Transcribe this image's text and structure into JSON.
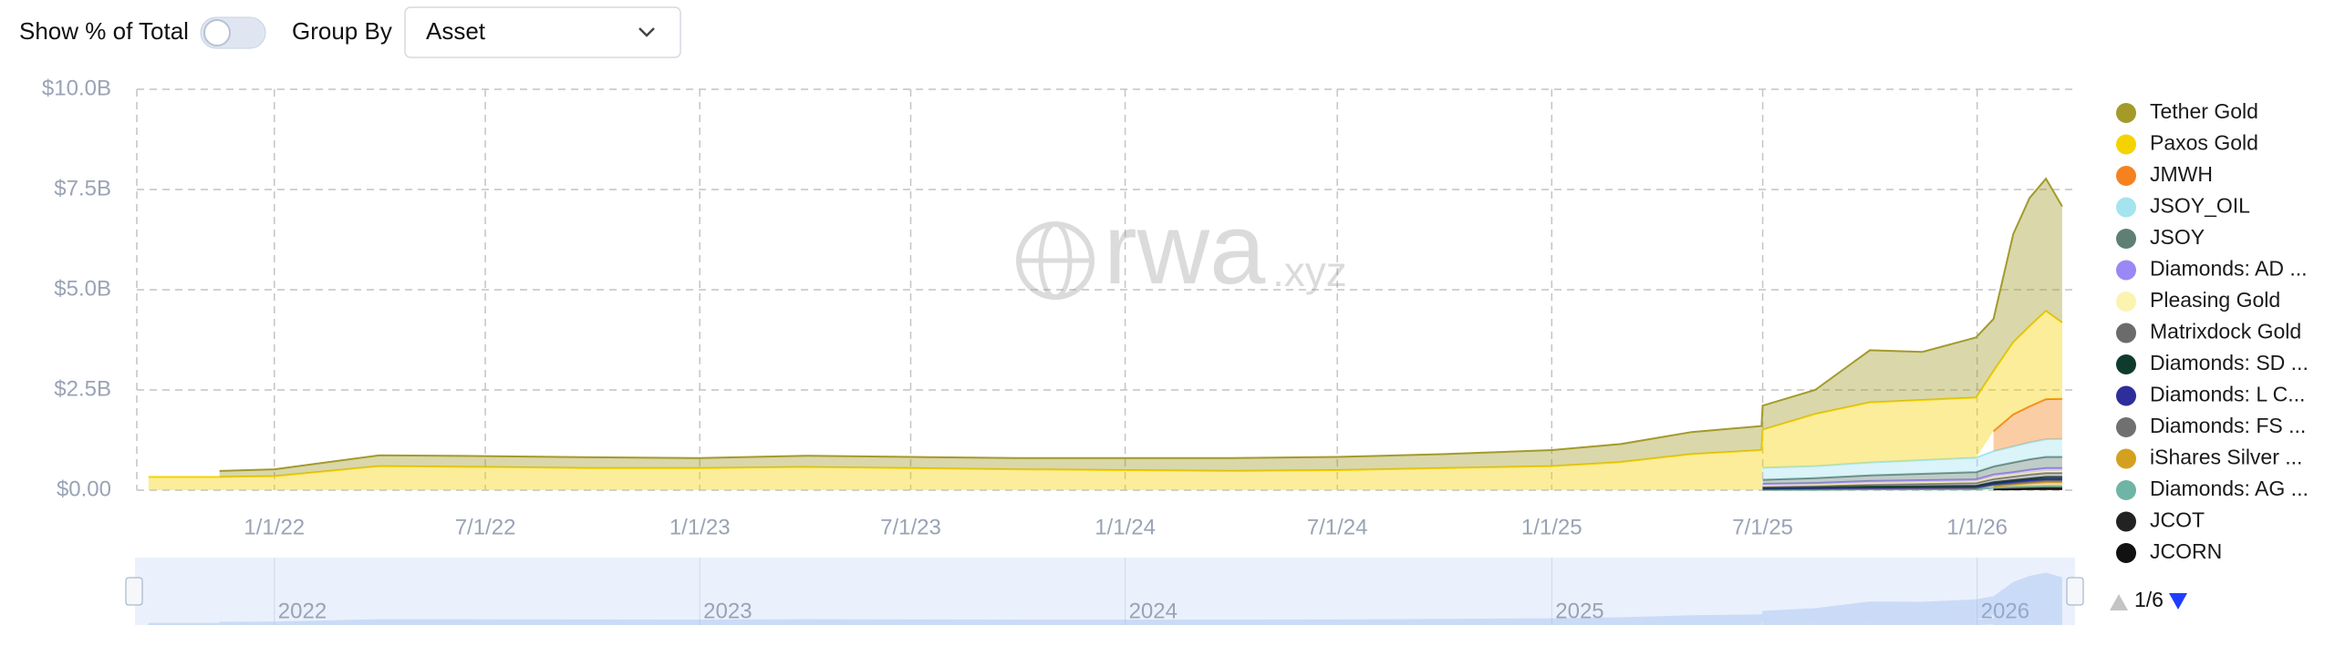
{
  "controls": {
    "show_pct_label": "Show % of Total",
    "group_by_label": "Group By",
    "group_by_value": "Asset"
  },
  "watermark_main": "rwa",
  "watermark_suffix": ".xyz",
  "legend_pager": "1/6",
  "navigator_labels": [
    "2022",
    "2023",
    "2024",
    "2025",
    "2026"
  ],
  "chart_data": {
    "type": "stacked-area",
    "x": [
      "2021-09-15",
      "2021-11-15",
      "2022-01-01",
      "2022-04-01",
      "2022-07-01",
      "2022-10-01",
      "2023-01-01",
      "2023-04-01",
      "2023-07-01",
      "2023-10-01",
      "2024-01-01",
      "2024-04-01",
      "2024-07-01",
      "2024-10-01",
      "2025-01-01",
      "2025-03-01",
      "2025-05-01",
      "2025-06-30",
      "2025-07-01",
      "2025-08-15",
      "2025-10-01",
      "2025-11-15",
      "2025-12-31",
      "2026-01-15",
      "2026-02-01",
      "2026-02-15",
      "2026-03-01",
      "2026-03-15"
    ],
    "xlim": [
      "2021-09-05",
      "2026-03-26"
    ],
    "xticks": [
      {
        "value": "2022-01-01",
        "label": "1/1/22"
      },
      {
        "value": "2022-07-01",
        "label": "7/1/22"
      },
      {
        "value": "2023-01-01",
        "label": "1/1/23"
      },
      {
        "value": "2023-07-01",
        "label": "7/1/23"
      },
      {
        "value": "2024-01-01",
        "label": "1/1/24"
      },
      {
        "value": "2024-07-01",
        "label": "7/1/24"
      },
      {
        "value": "2025-01-01",
        "label": "1/1/25"
      },
      {
        "value": "2025-07-01",
        "label": "7/1/25"
      },
      {
        "value": "2026-01-01",
        "label": "1/1/26"
      }
    ],
    "ylim": [
      0,
      10
    ],
    "yticks": [
      {
        "value": 0,
        "label": "$0.00"
      },
      {
        "value": 2.5,
        "label": "$2.5B"
      },
      {
        "value": 5,
        "label": "$5.0B"
      },
      {
        "value": 7.5,
        "label": "$7.5B"
      },
      {
        "value": 10,
        "label": "$10.0B"
      }
    ],
    "grid": true,
    "legend": "right",
    "series": [
      {
        "name": "Tether Gold",
        "color": "#a39a2a",
        "values": [
          null,
          0.15,
          0.17,
          0.27,
          0.27,
          0.27,
          0.25,
          0.28,
          0.28,
          0.28,
          0.3,
          0.32,
          0.33,
          0.35,
          0.4,
          0.45,
          0.55,
          0.6,
          0.6,
          0.6,
          1.3,
          1.2,
          1.5,
          1.3,
          2.7,
          3.2,
          3.3,
          2.9
        ]
      },
      {
        "name": "Paxos Gold",
        "color": "#f5d300",
        "values": [
          0.33,
          0.33,
          0.35,
          0.6,
          0.58,
          0.55,
          0.55,
          0.58,
          0.55,
          0.52,
          0.5,
          0.48,
          0.5,
          0.55,
          0.6,
          0.7,
          0.9,
          1.0,
          0.95,
          1.3,
          1.5,
          1.5,
          1.5,
          1.5,
          1.8,
          2.0,
          2.2,
          1.9
        ]
      },
      {
        "name": "JMWH",
        "color": "#f5821f",
        "values": [
          null,
          null,
          null,
          null,
          null,
          null,
          null,
          null,
          null,
          null,
          null,
          null,
          null,
          null,
          null,
          null,
          null,
          null,
          null,
          null,
          null,
          null,
          null,
          0.5,
          0.8,
          0.9,
          1.0,
          1.0
        ]
      },
      {
        "name": "JSOY_OIL",
        "color": "#a3e4ef",
        "values": [
          null,
          null,
          null,
          null,
          null,
          null,
          null,
          null,
          null,
          null,
          null,
          null,
          null,
          null,
          null,
          null,
          null,
          null,
          0.3,
          0.3,
          0.32,
          0.34,
          0.36,
          0.38,
          0.4,
          0.42,
          0.44,
          0.45
        ]
      },
      {
        "name": "JSOY",
        "color": "#5f7f73",
        "values": [
          null,
          null,
          null,
          null,
          null,
          null,
          null,
          null,
          null,
          null,
          null,
          null,
          null,
          null,
          null,
          null,
          null,
          null,
          0.1,
          0.12,
          0.14,
          0.16,
          0.18,
          0.2,
          0.24,
          0.26,
          0.28,
          0.28
        ]
      },
      {
        "name": "Diamonds: AD ...",
        "color": "#9b87f5",
        "values": [
          null,
          null,
          null,
          null,
          null,
          null,
          null,
          null,
          null,
          null,
          null,
          null,
          null,
          null,
          null,
          null,
          null,
          null,
          0.04,
          0.04,
          0.05,
          0.05,
          0.05,
          0.06,
          0.06,
          0.07,
          0.07,
          0.07
        ]
      },
      {
        "name": "Pleasing Gold",
        "color": "#fbf3b0",
        "values": [
          null,
          null,
          null,
          null,
          null,
          null,
          null,
          null,
          null,
          null,
          null,
          null,
          null,
          null,
          null,
          null,
          null,
          null,
          0.03,
          0.03,
          0.04,
          0.04,
          0.04,
          0.05,
          0.05,
          0.05,
          0.05,
          0.05
        ]
      },
      {
        "name": "Matrixdock Gold",
        "color": "#6b6b6b",
        "values": [
          null,
          null,
          null,
          null,
          null,
          null,
          null,
          null,
          null,
          null,
          null,
          null,
          null,
          null,
          null,
          null,
          null,
          null,
          0.03,
          0.04,
          0.05,
          0.06,
          0.07,
          0.08,
          0.09,
          0.1,
          0.1,
          0.1
        ]
      },
      {
        "name": "Diamonds: SD ...",
        "color": "#0f3b2e",
        "values": [
          null,
          null,
          null,
          null,
          null,
          null,
          null,
          null,
          null,
          null,
          null,
          null,
          null,
          null,
          null,
          null,
          null,
          null,
          0.02,
          0.02,
          0.03,
          0.03,
          0.03,
          0.04,
          0.04,
          0.04,
          0.05,
          0.05
        ]
      },
      {
        "name": "Diamonds: L C...",
        "color": "#2e2e9a",
        "values": [
          null,
          null,
          null,
          null,
          null,
          null,
          null,
          null,
          null,
          null,
          null,
          null,
          null,
          null,
          null,
          null,
          null,
          null,
          0.02,
          0.02,
          0.02,
          0.03,
          0.03,
          0.03,
          0.04,
          0.04,
          0.04,
          0.04
        ]
      },
      {
        "name": "Diamonds: FS ...",
        "color": "#707070",
        "values": [
          null,
          null,
          null,
          null,
          null,
          null,
          null,
          null,
          null,
          null,
          null,
          null,
          null,
          null,
          null,
          null,
          null,
          null,
          0.01,
          0.02,
          0.02,
          0.02,
          0.03,
          0.03,
          0.03,
          0.04,
          0.04,
          0.04
        ]
      },
      {
        "name": "iShares Silver ...",
        "color": "#d4a020",
        "values": [
          null,
          null,
          null,
          null,
          null,
          null,
          null,
          null,
          null,
          null,
          null,
          null,
          null,
          null,
          null,
          null,
          null,
          null,
          null,
          null,
          null,
          null,
          null,
          0.04,
          0.06,
          0.08,
          0.1,
          0.1
        ]
      },
      {
        "name": "Diamonds: AG ...",
        "color": "#6fb5a5",
        "values": [
          null,
          null,
          null,
          null,
          null,
          null,
          null,
          null,
          null,
          null,
          null,
          null,
          null,
          null,
          null,
          null,
          null,
          null,
          0.01,
          0.01,
          0.02,
          0.02,
          0.02,
          0.02,
          0.03,
          0.03,
          0.03,
          0.03
        ]
      },
      {
        "name": "JCOT",
        "color": "#222222",
        "values": [
          null,
          null,
          null,
          null,
          null,
          null,
          null,
          null,
          null,
          null,
          null,
          null,
          null,
          null,
          null,
          null,
          null,
          null,
          null,
          null,
          null,
          null,
          null,
          0.02,
          0.03,
          0.03,
          0.04,
          0.04
        ]
      },
      {
        "name": "JCORN",
        "color": "#111111",
        "values": [
          null,
          null,
          null,
          null,
          null,
          null,
          null,
          null,
          null,
          null,
          null,
          null,
          null,
          null,
          null,
          null,
          null,
          null,
          null,
          null,
          null,
          null,
          null,
          0.02,
          0.02,
          0.03,
          0.03,
          0.03
        ]
      }
    ]
  }
}
